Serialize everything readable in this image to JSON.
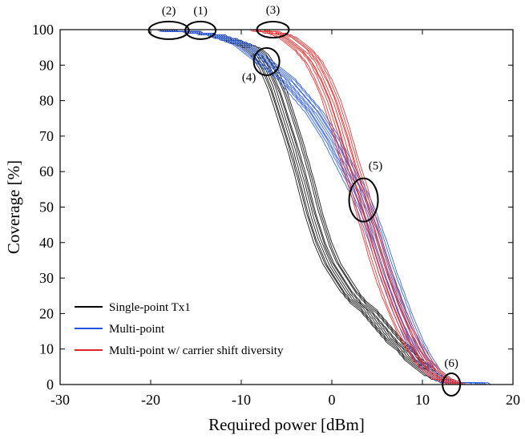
{
  "chart_data": {
    "type": "line",
    "title": "",
    "xlabel": "Required power [dBm]",
    "ylabel": "Coverage [%]",
    "xlim": [
      -30,
      20
    ],
    "ylim": [
      0,
      100
    ],
    "xticks": [
      -30,
      -20,
      -10,
      0,
      10,
      20
    ],
    "yticks": [
      0,
      10,
      20,
      30,
      40,
      50,
      60,
      70,
      80,
      90,
      100
    ],
    "legend_position": "bottom-left",
    "series": [
      {
        "name": "Single-point Tx1",
        "color": "#000000",
        "x": [
          -30,
          -24,
          -20,
          -16,
          -13,
          -11,
          -9,
          -8,
          -7,
          -6,
          -5,
          -4,
          -3,
          -2,
          -1,
          0,
          1,
          2,
          3,
          4,
          5,
          6,
          7,
          8,
          9,
          10,
          11,
          12,
          13,
          14,
          20
        ],
        "y": [
          100,
          100,
          100,
          99.5,
          98.5,
          97,
          95,
          93,
          89,
          83,
          75,
          67,
          58,
          48,
          40,
          34,
          30,
          26,
          23,
          21,
          18,
          15,
          12,
          10,
          7,
          5,
          3,
          1.5,
          0.5,
          0,
          0
        ]
      },
      {
        "name": "Multi-point",
        "color": "#2255dd",
        "x": [
          -30,
          -24,
          -20,
          -16,
          -13,
          -11,
          -10,
          -9,
          -8,
          -7,
          -6,
          -5,
          -4,
          -3,
          -2,
          -1,
          0,
          1,
          2,
          3,
          4,
          5,
          6,
          7,
          8,
          9,
          10,
          11,
          12,
          13,
          20
        ],
        "y": [
          100,
          100,
          100,
          99.5,
          98.5,
          97,
          96,
          94,
          92,
          90,
          88,
          86,
          83,
          80,
          77,
          73,
          69,
          64,
          59,
          54,
          48,
          41,
          33,
          26,
          19,
          13,
          8,
          4,
          2,
          0.5,
          0
        ]
      },
      {
        "name": "Multi-point w/ carrier shift diversity",
        "color": "#e52222",
        "x": [
          -30,
          -20,
          -10,
          -8,
          -6,
          -5,
          -4,
          -3,
          -2,
          -1,
          0,
          1,
          2,
          3,
          4,
          5,
          6,
          7,
          8,
          9,
          10,
          11,
          12,
          13,
          14,
          20
        ],
        "y": [
          100,
          100,
          100,
          99.8,
          99,
          98,
          96,
          94,
          91,
          86,
          80,
          72,
          63,
          55,
          46,
          37,
          29,
          22,
          16,
          11,
          7,
          4,
          2,
          0.8,
          0,
          0
        ]
      }
    ],
    "annotations": [
      {
        "label": "(1)",
        "x": -14.5,
        "y": 99.8
      },
      {
        "label": "(2)",
        "x": -18,
        "y": 99.8
      },
      {
        "label": "(3)",
        "x": -6.5,
        "y": 100
      },
      {
        "label": "(4)",
        "x": -7.2,
        "y": 91
      },
      {
        "label": "(5)",
        "x": 3.5,
        "y": 52
      },
      {
        "label": "(6)",
        "x": 13.2,
        "y": 0
      }
    ]
  }
}
